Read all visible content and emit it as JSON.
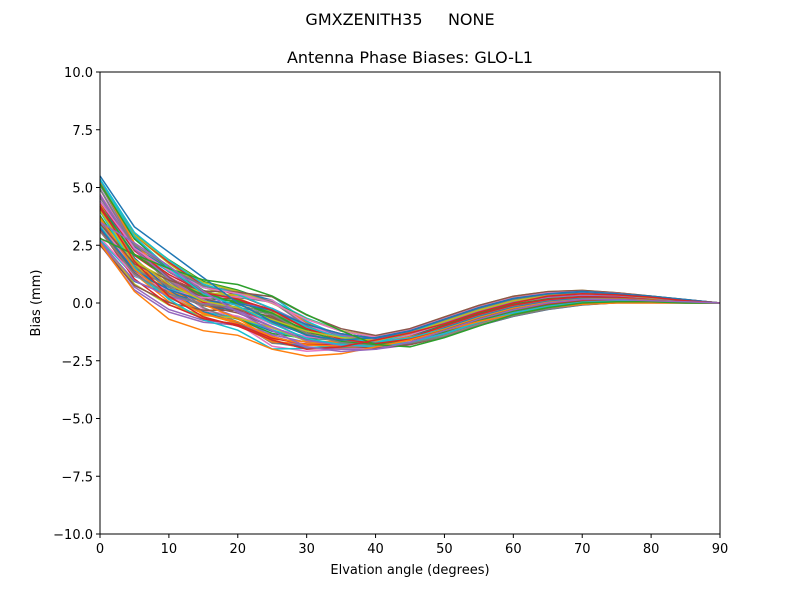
{
  "figure": {
    "suptitle": "GMXZENITH35     NONE",
    "title": "Antenna Phase Biases: GLO-L1"
  },
  "chart_data": {
    "type": "line",
    "title": "Antenna Phase Biases: GLO-L1",
    "suptitle": "GMXZENITH35     NONE",
    "xlabel": "Elvation angle (degrees)",
    "ylabel": "Bias (mm)",
    "xlim": [
      0,
      90
    ],
    "ylim": [
      -10,
      10
    ],
    "grid": false,
    "legend": "none",
    "x_ticks": [
      "0",
      "10",
      "20",
      "30",
      "40",
      "50",
      "60",
      "70",
      "80",
      "90"
    ],
    "y_ticks": [
      "10.0",
      "7.5",
      "5.0",
      "2.5",
      "0.0",
      "−2.5",
      "−5.0",
      "−7.5",
      "−10.0"
    ],
    "x": [
      0,
      5,
      10,
      15,
      20,
      25,
      30,
      35,
      40,
      45,
      50,
      55,
      60,
      65,
      70,
      75,
      80,
      85,
      90
    ],
    "series_count_estimate": 60,
    "envelope": {
      "upper": [
        5.5,
        3.3,
        2.2,
        1.2,
        0.8,
        0.3,
        -0.5,
        -1.1,
        -1.4,
        -1.1,
        -0.6,
        -0.1,
        0.3,
        0.5,
        0.55,
        0.45,
        0.3,
        0.15,
        0.0
      ],
      "lower": [
        2.5,
        0.4,
        -0.7,
        -1.2,
        -1.4,
        -2.0,
        -2.3,
        -2.2,
        -2.1,
        -1.9,
        -1.5,
        -1.0,
        -0.6,
        -0.3,
        -0.1,
        0.0,
        0.0,
        0.0,
        0.0
      ]
    },
    "representative_series": [
      {
        "name": "s1",
        "values": [
          5.5,
          3.3,
          2.2,
          1.1,
          0.0,
          -0.8,
          -1.4,
          -1.6,
          -1.5,
          -1.2,
          -0.7,
          -0.2,
          0.2,
          0.4,
          0.5,
          0.4,
          0.3,
          0.15,
          0.0
        ]
      },
      {
        "name": "s2",
        "values": [
          2.6,
          0.5,
          -0.7,
          -1.2,
          -1.4,
          -2.0,
          -2.3,
          -2.2,
          -1.9,
          -1.6,
          -1.2,
          -0.8,
          -0.5,
          -0.2,
          -0.05,
          0.0,
          0.0,
          0.0,
          0.0
        ]
      },
      {
        "name": "s3",
        "values": [
          2.8,
          2.1,
          1.5,
          1.0,
          0.8,
          0.3,
          -0.5,
          -1.2,
          -1.8,
          -1.9,
          -1.5,
          -1.0,
          -0.5,
          -0.2,
          0.0,
          0.05,
          0.05,
          0.0,
          0.0
        ]
      },
      {
        "name": "s4",
        "values": [
          4.2,
          1.8,
          0.3,
          -0.6,
          -1.0,
          -1.6,
          -2.0,
          -1.9,
          -1.6,
          -1.3,
          -0.9,
          -0.4,
          0.0,
          0.3,
          0.4,
          0.35,
          0.25,
          0.1,
          0.0
        ]
      },
      {
        "name": "s5",
        "values": [
          3.5,
          2.6,
          1.6,
          0.5,
          -0.4,
          -1.2,
          -1.9,
          -2.1,
          -2.0,
          -1.7,
          -1.2,
          -0.7,
          -0.3,
          0.0,
          0.15,
          0.15,
          0.1,
          0.05,
          0.0
        ]
      }
    ],
    "colors": [
      "#1f77b4",
      "#ff7f0e",
      "#2ca02c",
      "#d62728",
      "#9467bd",
      "#8c564b",
      "#e377c2",
      "#7f7f7f",
      "#bcbd22",
      "#17becf"
    ]
  }
}
